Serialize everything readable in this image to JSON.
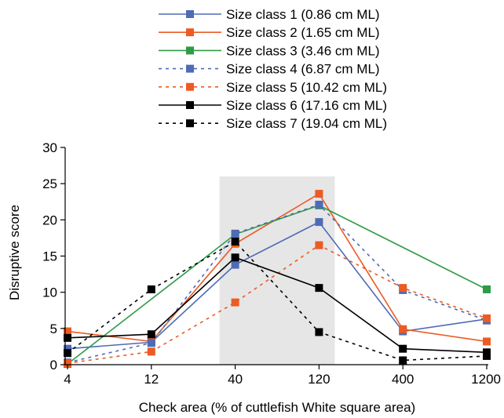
{
  "chart_data": {
    "type": "line",
    "xlabel": "Check area (% of cuttlefish White square area)",
    "ylabel": "Disruptive score",
    "categories": [
      "4",
      "12",
      "40",
      "120",
      "400",
      "1200"
    ],
    "ylim": [
      0,
      30
    ],
    "yticks": [
      "0",
      "5",
      "10",
      "15",
      "20",
      "25",
      "30"
    ],
    "grid": false,
    "legend_position": "top",
    "highlight_band": {
      "from_category": "40",
      "to_category": "120",
      "color": "#e6e6e6"
    },
    "series": [
      {
        "name": "Size class 1 (0.86 cm ML)",
        "color": "#4f6bb5",
        "dash": "solid",
        "values": [
          2.2,
          3.1,
          13.8,
          19.7,
          4.6,
          6.3
        ]
      },
      {
        "name": "Size class 2 (1.65 cm ML)",
        "color": "#ec5b24",
        "dash": "solid",
        "values": [
          4.6,
          3.2,
          16.7,
          23.6,
          4.9,
          3.2
        ]
      },
      {
        "name": "Size class 3 (3.46 cm ML)",
        "color": "#2e9b45",
        "dash": "solid",
        "values": [
          0.1,
          null,
          18.0,
          22.0,
          null,
          10.4
        ]
      },
      {
        "name": "Size class 4 (6.87 cm ML)",
        "color": "#4f6bb5",
        "dash": "dashed",
        "values": [
          0.3,
          3.0,
          18.1,
          22.1,
          10.3,
          6.1
        ]
      },
      {
        "name": "Size class 5 (10.42 cm ML)",
        "color": "#ec5b24",
        "dash": "dashed",
        "values": [
          0.2,
          1.8,
          8.6,
          16.5,
          10.6,
          6.4
        ]
      },
      {
        "name": "Size class 6 (17.16 cm ML)",
        "color": "#000000",
        "dash": "solid",
        "values": [
          3.7,
          4.2,
          14.8,
          10.6,
          2.2,
          1.7
        ]
      },
      {
        "name": "Size class 7 (19.04 cm ML)",
        "color": "#000000",
        "dash": "dashed",
        "values": [
          1.6,
          10.4,
          17.0,
          4.5,
          0.6,
          1.2
        ]
      }
    ]
  }
}
